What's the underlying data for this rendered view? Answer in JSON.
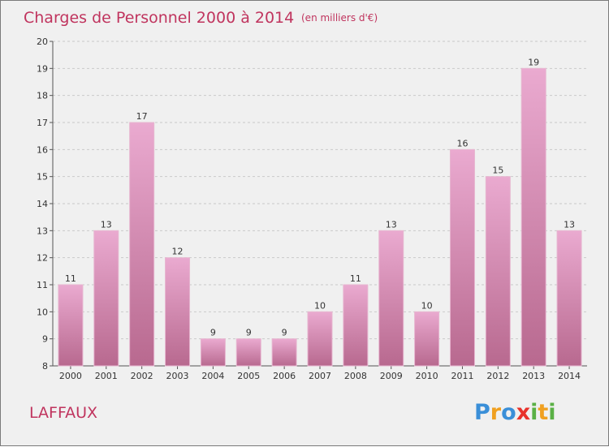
{
  "title": "Charges de Personnel 2000 à 2014",
  "subtitle": "(en milliers d'€)",
  "commune": "LAFFAUX",
  "logo": {
    "text": "Proxiti",
    "letters": [
      "P",
      "r",
      "o",
      "x",
      "i",
      "t",
      "i"
    ],
    "colors": [
      "#3a8fd8",
      "#f0a020",
      "#3a8fd8",
      "#e8322b",
      "#5ab045",
      "#f0a020",
      "#5ab045"
    ]
  },
  "colors": {
    "bar_top": "#eaaad0",
    "bar_bottom": "#b8698f",
    "bar_edge": "#e7b6d0",
    "title": "#c0345e",
    "background": "#f0f0f0"
  },
  "chart_data": {
    "type": "bar",
    "categories": [
      "2000",
      "2001",
      "2002",
      "2003",
      "2004",
      "2005",
      "2006",
      "2007",
      "2008",
      "2009",
      "2010",
      "2011",
      "2012",
      "2013",
      "2014"
    ],
    "values": [
      11,
      13,
      17,
      12,
      9,
      9,
      9,
      10,
      11,
      13,
      10,
      16,
      15,
      19,
      13
    ],
    "title": "Charges de Personnel 2000 à 2014",
    "subtitle": "(en milliers d'€)",
    "ylim": [
      8,
      20
    ],
    "yticks": [
      8,
      9,
      10,
      11,
      12,
      13,
      14,
      15,
      16,
      17,
      18,
      19,
      20
    ],
    "grid": true,
    "legend": "none"
  }
}
